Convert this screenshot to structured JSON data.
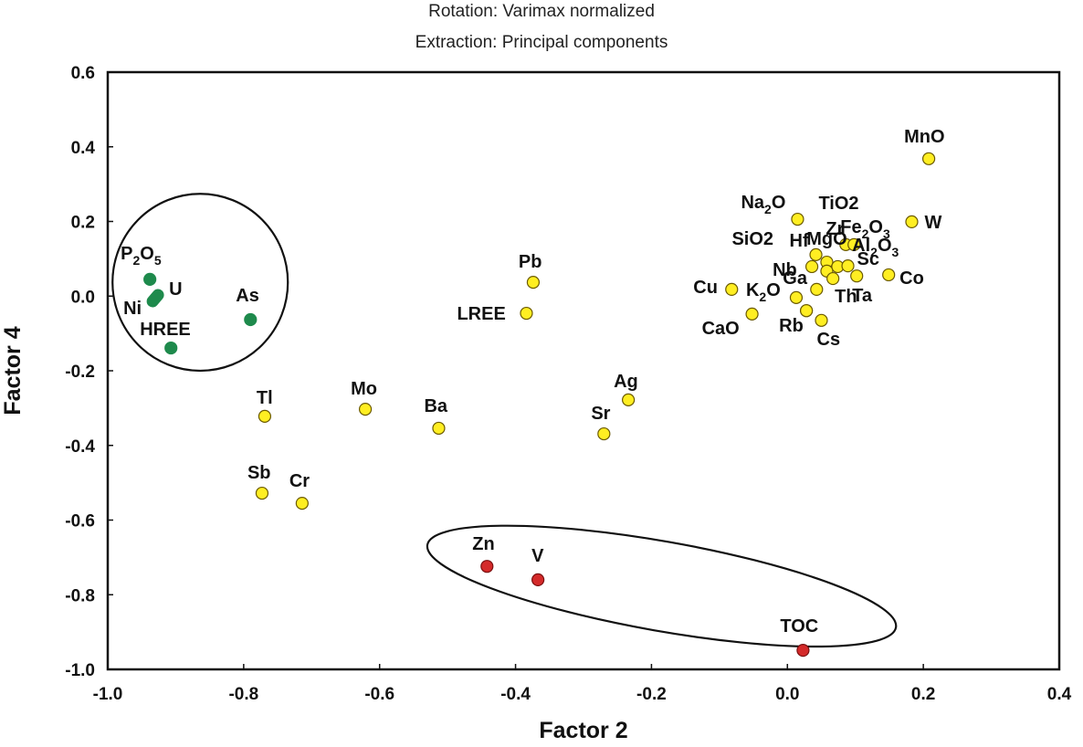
{
  "chart_data": {
    "type": "scatter",
    "title_lines": [
      "Rotation: Varimax normalized",
      "Extraction: Principal components"
    ],
    "xlabel": "Factor 2",
    "ylabel": "Factor 4",
    "xlim": [
      -1.0,
      0.4
    ],
    "ylim": [
      -1.0,
      0.6
    ],
    "xticks": [
      -1.0,
      -0.8,
      -0.6,
      -0.4,
      -0.2,
      0.0,
      0.2,
      0.4
    ],
    "yticks": [
      -1.0,
      -0.8,
      -0.6,
      -0.4,
      -0.2,
      0.0,
      0.2,
      0.4,
      0.6
    ],
    "xtick_labels": [
      "-1.0",
      "-0.8",
      "-0.6",
      "-0.4",
      "-0.2",
      "0.0",
      "0.2",
      "0.4"
    ],
    "ytick_labels": [
      "-1.0",
      "-0.8",
      "-0.6",
      "-0.4",
      "-0.2",
      "0.0",
      "0.2",
      "0.4",
      "0.6"
    ],
    "grid": false,
    "groups": {
      "green": {
        "color": "#1e8a4c",
        "stroke": "#1e8a4c"
      },
      "yellow": {
        "color": "#ffee22",
        "stroke": "#6b5a00"
      },
      "red": {
        "color": "#d42a2a",
        "stroke": "#7a1010"
      }
    },
    "points": [
      {
        "label": "P2O5",
        "x": -0.938,
        "y": 0.045,
        "group": "green"
      },
      {
        "label": "U",
        "x": -0.926,
        "y": 0.003,
        "group": "green"
      },
      {
        "label": "Ni",
        "x": -0.934,
        "y": -0.014,
        "group": "green"
      },
      {
        "label": "As",
        "x": -0.79,
        "y": -0.063,
        "group": "green"
      },
      {
        "label": "HREE",
        "x": -0.907,
        "y": -0.139,
        "group": "green"
      },
      {
        "label": "Pb",
        "x": -0.374,
        "y": 0.037,
        "group": "yellow"
      },
      {
        "label": "LREE",
        "x": -0.384,
        "y": -0.046,
        "group": "yellow"
      },
      {
        "label": "Tl",
        "x": -0.769,
        "y": -0.322,
        "group": "yellow"
      },
      {
        "label": "Mo",
        "x": -0.621,
        "y": -0.303,
        "group": "yellow"
      },
      {
        "label": "Ba",
        "x": -0.513,
        "y": -0.354,
        "group": "yellow"
      },
      {
        "label": "Ag",
        "x": -0.234,
        "y": -0.278,
        "group": "yellow"
      },
      {
        "label": "Sr",
        "x": -0.27,
        "y": -0.369,
        "group": "yellow"
      },
      {
        "label": "Sb",
        "x": -0.773,
        "y": -0.528,
        "group": "yellow"
      },
      {
        "label": "Cr",
        "x": -0.714,
        "y": -0.555,
        "group": "yellow"
      },
      {
        "label": "MnO",
        "x": 0.208,
        "y": 0.368,
        "group": "yellow"
      },
      {
        "label": "Na2O",
        "x": 0.015,
        "y": 0.206,
        "group": "yellow"
      },
      {
        "label": "W",
        "x": 0.183,
        "y": 0.199,
        "group": "yellow"
      },
      {
        "label": "Fe2O3",
        "x": 0.086,
        "y": 0.138,
        "group": "yellow"
      },
      {
        "label": "MgO",
        "x": 0.098,
        "y": 0.138,
        "group": "yellow"
      },
      {
        "label": "Hf",
        "x": 0.042,
        "y": 0.111,
        "group": "yellow"
      },
      {
        "label": "SiO2",
        "x": 0.058,
        "y": 0.091,
        "group": "yellow"
      },
      {
        "label": "Nb",
        "x": 0.036,
        "y": 0.079,
        "group": "yellow"
      },
      {
        "label": "Zr",
        "x": 0.074,
        "y": 0.079,
        "group": "yellow"
      },
      {
        "label": "TiO2",
        "x": 0.058,
        "y": 0.067,
        "group": "yellow"
      },
      {
        "label": "Sc",
        "x": 0.089,
        "y": 0.081,
        "group": "yellow"
      },
      {
        "label": "Al2O3",
        "x": 0.067,
        "y": 0.047,
        "group": "yellow"
      },
      {
        "label": "Ta",
        "x": 0.102,
        "y": 0.054,
        "group": "yellow"
      },
      {
        "label": "Co",
        "x": 0.149,
        "y": 0.057,
        "group": "yellow"
      },
      {
        "label": "Ga",
        "x": 0.043,
        "y": 0.018,
        "group": "yellow"
      },
      {
        "label": "Cu",
        "x": -0.082,
        "y": 0.018,
        "group": "yellow"
      },
      {
        "label": "K2O",
        "x": 0.013,
        "y": -0.004,
        "group": "yellow"
      },
      {
        "label": "CaO",
        "x": -0.052,
        "y": -0.048,
        "group": "yellow"
      },
      {
        "label": "Th",
        "x": 0.028,
        "y": -0.039,
        "group": "yellow"
      },
      {
        "label": "Rb",
        "x": 0.028,
        "y": -0.039,
        "group": "yellow"
      },
      {
        "label": "Cs",
        "x": 0.05,
        "y": -0.065,
        "group": "yellow"
      },
      {
        "label": "Zn",
        "x": -0.442,
        "y": -0.724,
        "group": "red"
      },
      {
        "label": "V",
        "x": -0.367,
        "y": -0.76,
        "group": "red"
      },
      {
        "label": "TOC",
        "x": 0.023,
        "y": -0.949,
        "group": "red"
      }
    ],
    "annotations": [
      {
        "type": "ellipse",
        "cx": -0.864,
        "cy": 0.037,
        "rx": 0.129,
        "ry": 0.237,
        "rotation_deg": 0,
        "encloses": "green cluster"
      },
      {
        "type": "ellipse",
        "cx": -0.185,
        "cy": -0.777,
        "rx": 0.35,
        "ry": 0.12,
        "rotation_deg": 10,
        "encloses": "red cluster"
      }
    ]
  }
}
